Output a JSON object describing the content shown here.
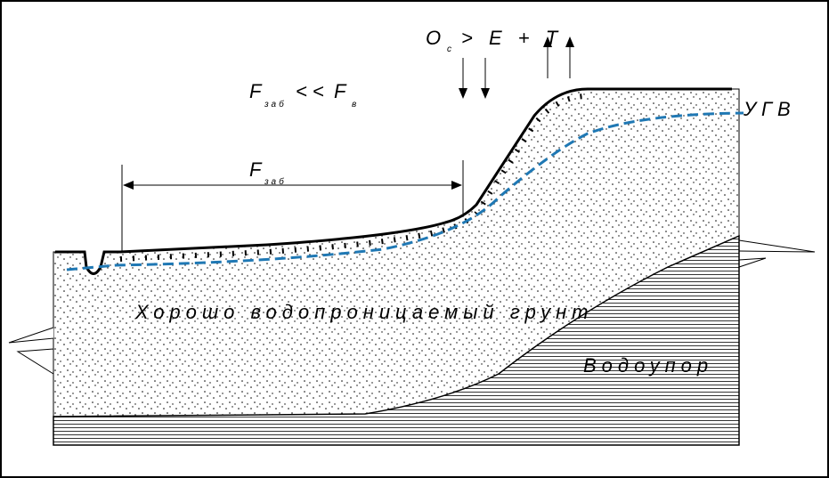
{
  "balance": {
    "left": "О",
    "left_sub": "с",
    "right": "> Е + Т"
  },
  "area_relation": {
    "left": "F",
    "left_sub": "заб",
    "operator": "<<",
    "right": "F",
    "right_sub": "в"
  },
  "dimension": {
    "label": "F",
    "label_sub": "заб"
  },
  "groundwater_label": "УГВ",
  "soil_label": "Хорошо водопроницаемый грунт",
  "aquitard_label": "Водоупор"
}
